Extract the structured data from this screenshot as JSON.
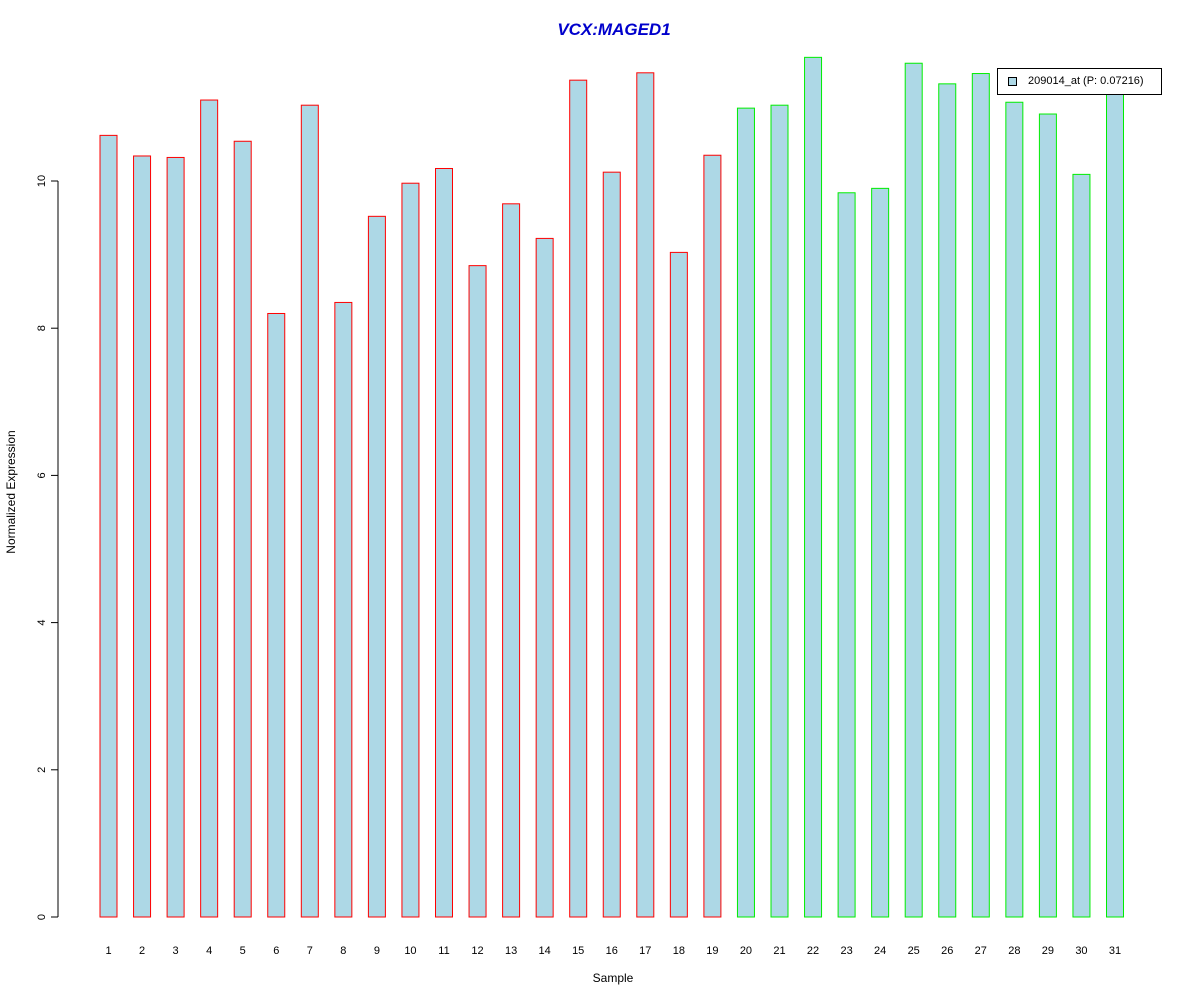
{
  "chart_data": {
    "type": "bar",
    "title": "VCX:MAGED1",
    "xlabel": "Sample",
    "ylabel": "Normalized Expression",
    "ylim": [
      0,
      11.9
    ],
    "yticks": [
      0,
      2,
      4,
      6,
      8,
      10
    ],
    "grid": false,
    "legend_position": "top-right",
    "categories": [
      "1",
      "2",
      "3",
      "4",
      "5",
      "6",
      "7",
      "8",
      "9",
      "10",
      "11",
      "12",
      "13",
      "14",
      "15",
      "16",
      "17",
      "18",
      "19",
      "20",
      "21",
      "22",
      "23",
      "24",
      "25",
      "26",
      "27",
      "28",
      "29",
      "30",
      "31"
    ],
    "series": [
      {
        "name": "209014_at (P: 0.07216)",
        "values": [
          10.62,
          10.34,
          10.32,
          11.1,
          10.54,
          8.2,
          11.03,
          8.35,
          9.52,
          9.97,
          10.17,
          8.85,
          9.69,
          9.22,
          11.37,
          10.12,
          11.47,
          9.03,
          10.35,
          10.99,
          11.03,
          11.68,
          9.84,
          9.9,
          11.6,
          11.32,
          11.46,
          11.07,
          10.91,
          10.09,
          11.2
        ]
      }
    ],
    "group_count_first": 19,
    "colors": {
      "title": "#0000cc",
      "bar_fill": "#add8e6",
      "group1_border": "#ff0000",
      "group2_border": "#00ee00",
      "axis": "#000000"
    }
  }
}
